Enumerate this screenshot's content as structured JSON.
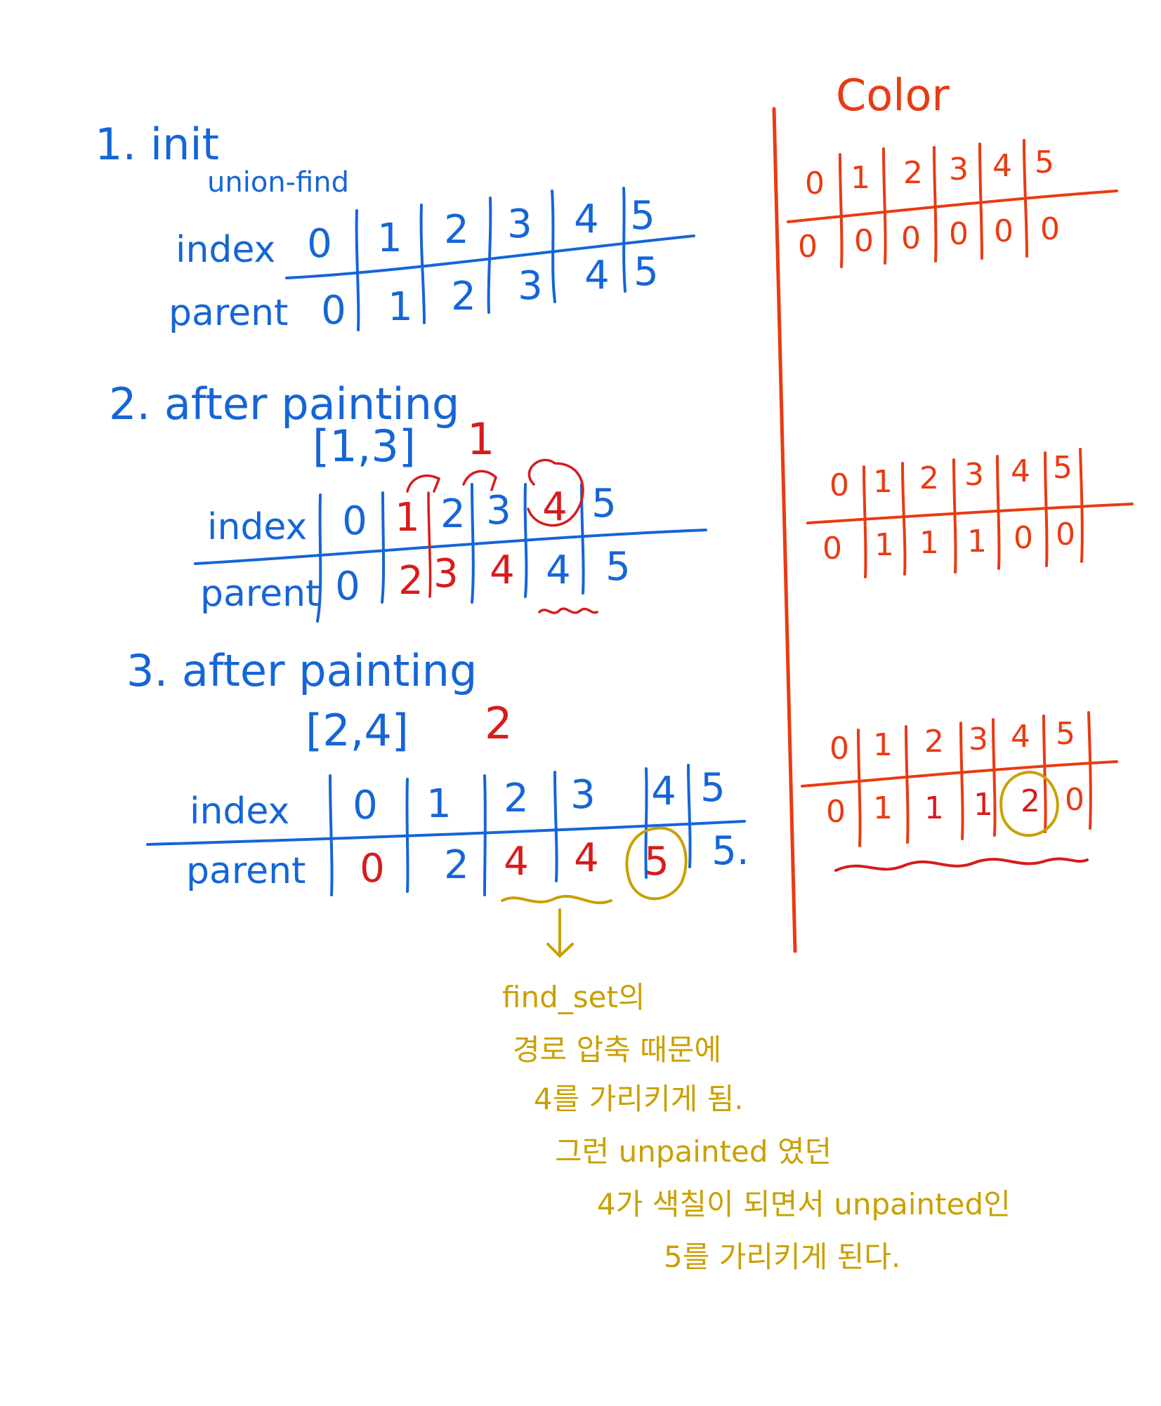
{
  "colors": {
    "blue": "#1565d8",
    "red": "#d81b1b",
    "orange": "#ea3a12",
    "gold": "#c9a000"
  },
  "color_panel": {
    "title": "Color",
    "tables": [
      {
        "index": [
          "0",
          "1",
          "2",
          "3",
          "4",
          "5"
        ],
        "value": [
          "0",
          "0",
          "0",
          "0",
          "0",
          "0"
        ]
      },
      {
        "index": [
          "0",
          "1",
          "2",
          "3",
          "4",
          "5"
        ],
        "value": [
          "0",
          "1",
          "1",
          "1",
          "0",
          "0"
        ]
      },
      {
        "index": [
          "0",
          "1",
          "2",
          "3",
          "4",
          "5"
        ],
        "value": [
          "0",
          "1",
          "1",
          "1",
          "2",
          "0"
        ]
      }
    ]
  },
  "steps": [
    {
      "heading": "1. init",
      "subheading": "union-find",
      "row_labels": [
        "index",
        "parent"
      ],
      "index": [
        "0",
        "1",
        "2",
        "3",
        "4",
        "5"
      ],
      "parent": [
        "0",
        "1",
        "2",
        "3",
        "4",
        "5"
      ]
    },
    {
      "heading": "2. after painting",
      "range": "[1,3]",
      "paint_value": "1",
      "row_labels": [
        "index",
        "parent"
      ],
      "index": [
        "0",
        "1",
        "2",
        "3",
        "4",
        "5"
      ],
      "parent": [
        "0",
        "2",
        "3",
        "4",
        "4",
        "5"
      ]
    },
    {
      "heading": "3. after painting",
      "range": "[2,4]",
      "paint_value": "2",
      "row_labels": [
        "index",
        "parent"
      ],
      "index": [
        "0",
        "1",
        "2",
        "3",
        "4",
        "5"
      ],
      "parent": [
        "0",
        "2",
        "4",
        "4",
        "5",
        "5."
      ]
    }
  ],
  "note": {
    "lines": [
      "find_set의",
      "경로 압축 때문에",
      "4를 가리키게 됨.",
      "그런 unpainted 였던",
      "4가 색칠이 되면서 unpainted인",
      "5를 가리키게 된다."
    ]
  }
}
